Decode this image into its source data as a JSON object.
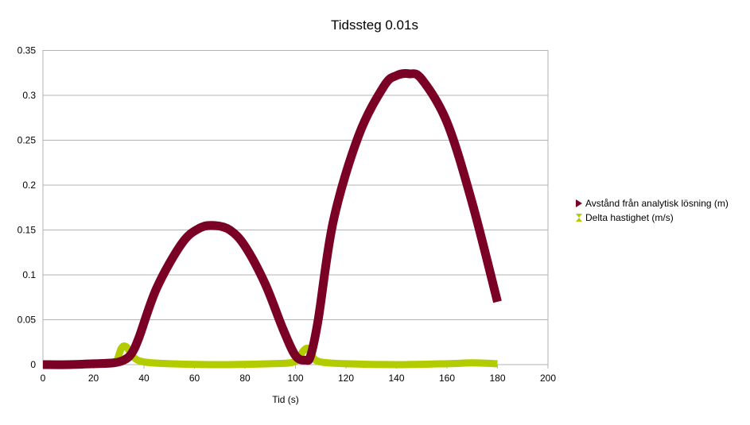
{
  "chart_data": {
    "type": "line",
    "title": "Tidssteg 0.01s",
    "xlabel": "Tid (s)",
    "ylabel": "",
    "xlim": [
      0,
      200
    ],
    "ylim": [
      0,
      0.35
    ],
    "x_ticks": [
      0,
      20,
      40,
      60,
      80,
      100,
      120,
      140,
      160,
      180,
      200
    ],
    "y_ticks": [
      0,
      0.05,
      0.1,
      0.15,
      0.2,
      0.25,
      0.3,
      0.35
    ],
    "x_tick_labels": [
      "0",
      "20",
      "40",
      "60",
      "80",
      "100",
      "120",
      "140",
      "160",
      "180",
      "200"
    ],
    "y_tick_labels": [
      "0",
      "0.05",
      "0.1",
      "0.15",
      "0.2",
      "0.25",
      "0.3",
      "0.35"
    ],
    "grid": "horizontal",
    "legend_position": "right",
    "series": [
      {
        "name": "Avstånd från analytisk lösning (m)",
        "color": "#7b0026",
        "marker": "triangle-right",
        "x": [
          0,
          10,
          20,
          28,
          32,
          35,
          38,
          45,
          55,
          62,
          68,
          74,
          80,
          88,
          95,
          100,
          104,
          106,
          109,
          115,
          125,
          135,
          140,
          145,
          150,
          160,
          170,
          180
        ],
        "y": [
          0,
          0,
          0.001,
          0.002,
          0.005,
          0.012,
          0.03,
          0.085,
          0.135,
          0.152,
          0.155,
          0.15,
          0.132,
          0.09,
          0.04,
          0.01,
          0.005,
          0.01,
          0.05,
          0.16,
          0.255,
          0.31,
          0.322,
          0.324,
          0.318,
          0.27,
          0.18,
          0.07
        ]
      },
      {
        "name": "Delta hastighet (m/s)",
        "color": "#b2cc00",
        "marker": "hourglass",
        "x": [
          0,
          20,
          25,
          29,
          31,
          33,
          36,
          40,
          50,
          70,
          90,
          98,
          101,
          103,
          105,
          107,
          110,
          120,
          140,
          160,
          170,
          180
        ],
        "y": [
          0,
          0.001,
          0.002,
          0.004,
          0.018,
          0.02,
          0.008,
          0.003,
          0.001,
          0,
          0.001,
          0.002,
          0.006,
          0.015,
          0.018,
          0.008,
          0.003,
          0.001,
          0,
          0.001,
          0.002,
          0.001
        ]
      }
    ]
  }
}
